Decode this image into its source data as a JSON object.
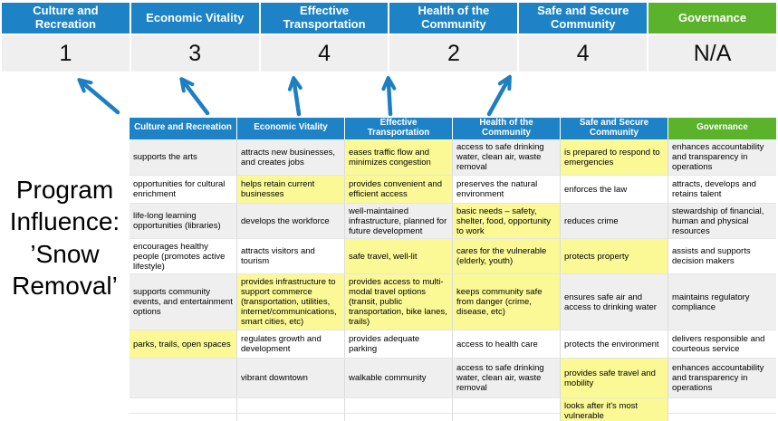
{
  "program_label": "Program Influence: ’Snow Removal’",
  "scoreboard": {
    "columns": [
      {
        "label": "Culture and Recreation",
        "score": "1",
        "theme": "blue"
      },
      {
        "label": "Economic Vitality",
        "score": "3",
        "theme": "blue"
      },
      {
        "label": "Effective Transportation",
        "score": "4",
        "theme": "blue"
      },
      {
        "label": "Health of the Community",
        "score": "2",
        "theme": "blue"
      },
      {
        "label": "Safe and Secure Community",
        "score": "4",
        "theme": "blue"
      },
      {
        "label": "Governance",
        "score": "N/A",
        "theme": "green"
      }
    ]
  },
  "matrix": {
    "headers": [
      {
        "label": "Culture and Recreation",
        "theme": "blue"
      },
      {
        "label": "Economic Vitality",
        "theme": "blue"
      },
      {
        "label": "Effective Transportation",
        "theme": "blue"
      },
      {
        "label": "Health of the Community",
        "theme": "blue"
      },
      {
        "label": "Safe and Secure Community",
        "theme": "blue"
      },
      {
        "label": "Governance",
        "theme": "green"
      }
    ],
    "rows": [
      [
        {
          "t": "supports the arts",
          "h": false
        },
        {
          "t": "attracts new businesses, and creates jobs",
          "h": false
        },
        {
          "t": "eases traffic flow and minimizes congestion",
          "h": true
        },
        {
          "t": "access to safe drinking water, clean air, waste removal",
          "h": false
        },
        {
          "t": "is prepared to respond to emergencies",
          "h": true
        },
        {
          "t": "enhances accountability and transparency in operations",
          "h": false
        }
      ],
      [
        {
          "t": "opportunities for cultural enrichment",
          "h": false
        },
        {
          "t": "helps retain current businesses",
          "h": true
        },
        {
          "t": "provides convenient and efficient access",
          "h": true
        },
        {
          "t": "preserves the natural environment",
          "h": false
        },
        {
          "t": "enforces the law",
          "h": false
        },
        {
          "t": "attracts, develops and retains talent",
          "h": false
        }
      ],
      [
        {
          "t": "life-long learning opportunities (libraries)",
          "h": false
        },
        {
          "t": "develops the workforce",
          "h": false
        },
        {
          "t": "well-maintained infrastructure, planned for future development",
          "h": false
        },
        {
          "t": "basic needs – safety, shelter, food, opportunity to work",
          "h": true
        },
        {
          "t": "reduces crime",
          "h": false
        },
        {
          "t": "stewardship of financial, human and physical resources",
          "h": false
        }
      ],
      [
        {
          "t": "encourages healthy people (promotes active lifestyle)",
          "h": false
        },
        {
          "t": "attracts visitors and tourism",
          "h": false
        },
        {
          "t": "safe travel, well-lit",
          "h": true
        },
        {
          "t": "cares for the vulnerable (elderly, youth)",
          "h": true
        },
        {
          "t": "protects property",
          "h": true
        },
        {
          "t": "assists and supports decision makers",
          "h": false
        }
      ],
      [
        {
          "t": "supports community events, and entertainment options",
          "h": false
        },
        {
          "t": "provides infrastructure to support commerce (transportation, utilities, internet/communications, smart cities, etc)",
          "h": true
        },
        {
          "t": "provides access to multi-modal travel options (transit, public transportation, bike lanes, trails)",
          "h": true
        },
        {
          "t": "keeps community safe from danger (crime, disease, etc)",
          "h": true
        },
        {
          "t": "ensures safe air and access to drinking water",
          "h": false
        },
        {
          "t": "maintains regulatory compliance",
          "h": false
        }
      ],
      [
        {
          "t": "parks, trails, open spaces",
          "h": true
        },
        {
          "t": "regulates growth and development",
          "h": false
        },
        {
          "t": "provides adequate parking",
          "h": false
        },
        {
          "t": "access to health care",
          "h": false
        },
        {
          "t": "protects the environment",
          "h": false
        },
        {
          "t": "delivers responsible and courteous service",
          "h": false
        }
      ],
      [
        {
          "t": "",
          "h": false
        },
        {
          "t": "vibrant downtown",
          "h": false
        },
        {
          "t": "walkable community",
          "h": false
        },
        {
          "t": "access to safe drinking water, clean air, waste removal",
          "h": false
        },
        {
          "t": "provides safe travel and mobility",
          "h": true
        },
        {
          "t": "enhances accountability and transparency in operations",
          "h": false
        }
      ],
      [
        {
          "t": "",
          "h": false
        },
        {
          "t": "",
          "h": false
        },
        {
          "t": "",
          "h": false
        },
        {
          "t": "",
          "h": false
        },
        {
          "t": "looks after it's most vulnerable",
          "h": true
        },
        {
          "t": "",
          "h": false
        }
      ]
    ]
  },
  "colors": {
    "header_blue": "#1d83c6",
    "header_green": "#5bb22b",
    "highlight_yellow": "#fbf996",
    "score_row_gray": "#efefef",
    "arrow_blue": "#1d7fc1"
  }
}
